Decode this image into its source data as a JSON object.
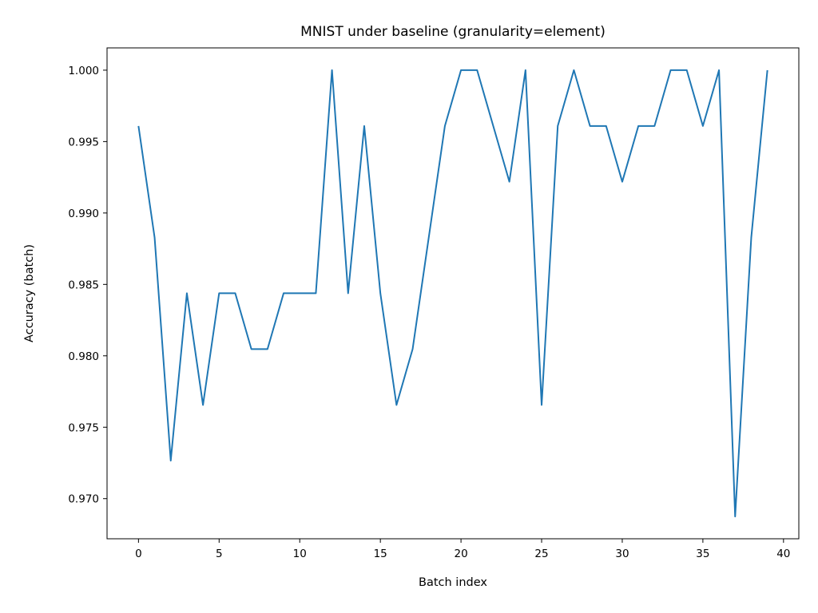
{
  "chart_data": {
    "type": "line",
    "title": "MNIST under baseline (granularity=element)",
    "xlabel": "Batch index",
    "ylabel": "Accuracy (batch)",
    "xlim": [
      -1.95,
      40.95
    ],
    "ylim": [
      0.96719,
      1.00156
    ],
    "xticks": [
      0,
      5,
      10,
      15,
      20,
      25,
      30,
      35,
      40
    ],
    "xtick_labels": [
      "0",
      "5",
      "10",
      "15",
      "20",
      "25",
      "30",
      "35",
      "40"
    ],
    "yticks": [
      0.97,
      0.975,
      0.98,
      0.985,
      0.99,
      0.995,
      1.0
    ],
    "ytick_labels": [
      "0.970",
      "0.975",
      "0.980",
      "0.985",
      "0.990",
      "0.995",
      "1.000"
    ],
    "grid": false,
    "legend": false,
    "series_color": "#1f77b4",
    "series": [
      {
        "x": [
          0,
          1,
          2,
          3,
          4,
          5,
          6,
          7,
          8,
          9,
          10,
          11,
          12,
          13,
          14,
          15,
          16,
          17,
          18,
          19,
          20,
          21,
          22,
          23,
          24,
          25,
          26,
          27,
          28,
          29,
          30,
          31,
          32,
          33,
          34,
          35,
          36,
          37,
          38,
          39
        ],
        "values": [
          0.99609,
          0.98828,
          0.97266,
          0.98438,
          0.97656,
          0.98438,
          0.98438,
          0.98047,
          0.98047,
          0.98438,
          0.98438,
          0.98438,
          1.0,
          0.98438,
          0.99609,
          0.98438,
          0.97656,
          0.98047,
          0.98828,
          0.99609,
          1.0,
          1.0,
          0.99609,
          0.99219,
          1.0,
          0.97656,
          0.99609,
          1.0,
          0.99609,
          0.99609,
          0.99219,
          0.99609,
          0.99609,
          1.0,
          1.0,
          0.99609,
          1.0,
          0.96875,
          0.98828,
          1.0
        ]
      }
    ]
  }
}
